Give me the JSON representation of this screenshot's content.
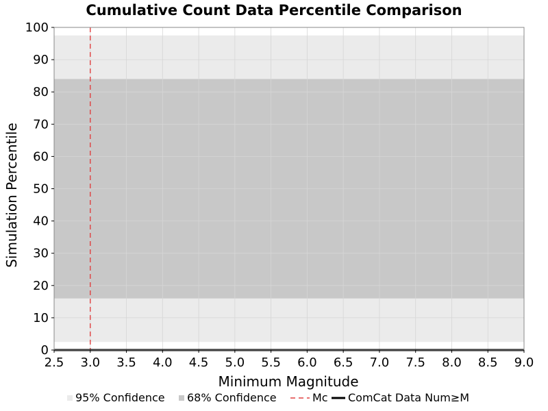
{
  "chart_data": {
    "type": "line",
    "title": "Cumulative Count Data Percentile Comparison",
    "xlabel": "Minimum Magnitude",
    "ylabel": "Simulation Percentile",
    "xlim": [
      2.5,
      9.0
    ],
    "ylim": [
      0,
      100
    ],
    "xticks": [
      "2.5",
      "3.0",
      "3.5",
      "4.0",
      "4.5",
      "5.0",
      "5.5",
      "6.0",
      "6.5",
      "7.0",
      "7.5",
      "8.0",
      "8.5",
      "9.0"
    ],
    "yticks": [
      "0",
      "10",
      "20",
      "30",
      "40",
      "50",
      "60",
      "70",
      "80",
      "90",
      "100"
    ],
    "grid": true,
    "legend_position": "bottom",
    "bands": [
      {
        "name": "95% Confidence",
        "lower": 2.5,
        "upper": 97.5,
        "color": "#ebebeb"
      },
      {
        "name": "68% Confidence",
        "lower": 16,
        "upper": 84,
        "color": "#c8c8c8"
      }
    ],
    "vlines": [
      {
        "name": "Mc",
        "x": 3.0,
        "color": "#e04040",
        "style": "dashed"
      }
    ],
    "series": [
      {
        "name": "ComCat Data Num≥M",
        "color": "#000000",
        "x": [
          2.5,
          9.0
        ],
        "y": [
          0,
          0
        ]
      }
    ]
  }
}
